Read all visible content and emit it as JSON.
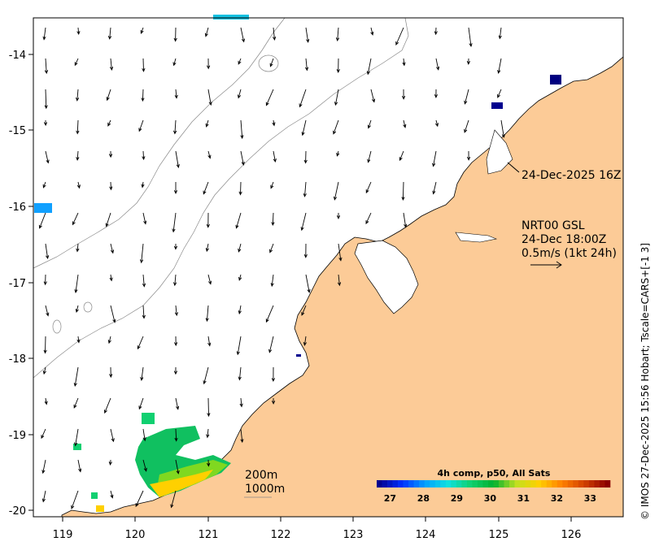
{
  "map": {
    "product_label": "NRT00 GSL",
    "valid_time": "24-Dec 18:00Z",
    "vector_scale_label": "0.5m/s (1kt 24h)",
    "pass_time_label": "24-Dec-2025 16Z",
    "isobath_labels": [
      "200m",
      "1000m"
    ],
    "credit": "© IMOS 27-Dec-2025 15:56 Hobart; Tscale=CARS+[-1 3]",
    "lon_ticks": [
      "119",
      "120",
      "121",
      "122",
      "123",
      "124",
      "125",
      "126"
    ],
    "lat_ticks": [
      "-14",
      "-15",
      "-16",
      "-17",
      "-18",
      "-19",
      "-20"
    ],
    "colors": {
      "land": "#fccb97",
      "ocean": "#ffffff",
      "frame": "#000000"
    }
  },
  "colorbar": {
    "title": "4h comp, p50, All Sats",
    "tick_labels": [
      "27",
      "28",
      "29",
      "30",
      "31",
      "32",
      "33"
    ],
    "range": [
      26.6,
      33.6
    ],
    "palette": [
      "#00008f",
      "#0030ff",
      "#00a0ff",
      "#10e0e0",
      "#10d070",
      "#00b030",
      "#c0e020",
      "#ffd000",
      "#ff8000",
      "#d04000",
      "#8b0000"
    ]
  }
}
